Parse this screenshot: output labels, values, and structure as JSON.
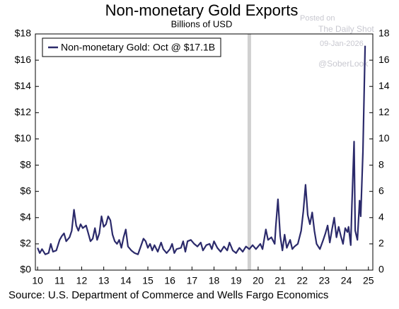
{
  "chart_data": {
    "type": "line",
    "title": "Non-monetary Gold Exports",
    "subtitle": "Billions of USD",
    "source": "Source: U.S. Department of Commerce and Wells Fargo Economics",
    "watermark": [
      "Posted on",
      "The Daily Shot",
      "09-Jan-2026",
      "@SoberLook"
    ],
    "legend_position": "upper left",
    "shaded_x": [
      19.52,
      19.68
    ],
    "shade_color": "#d0d0d0",
    "x": [
      10.0,
      10.1,
      10.2,
      10.35,
      10.5,
      10.6,
      10.7,
      10.85,
      11.0,
      11.1,
      11.2,
      11.3,
      11.45,
      11.55,
      11.65,
      11.75,
      11.85,
      11.95,
      12.05,
      12.2,
      12.3,
      12.4,
      12.5,
      12.6,
      12.7,
      12.8,
      12.9,
      13.0,
      13.1,
      13.2,
      13.3,
      13.4,
      13.5,
      13.6,
      13.7,
      13.8,
      13.9,
      14.0,
      14.1,
      14.25,
      14.4,
      14.55,
      14.7,
      14.8,
      14.9,
      15.0,
      15.1,
      15.2,
      15.3,
      15.45,
      15.6,
      15.7,
      15.85,
      16.0,
      16.1,
      16.2,
      16.3,
      16.5,
      16.6,
      16.7,
      16.8,
      16.95,
      17.1,
      17.25,
      17.4,
      17.5,
      17.65,
      17.8,
      17.9,
      18.0,
      18.15,
      18.3,
      18.45,
      18.6,
      18.7,
      18.85,
      19.0,
      19.15,
      19.3,
      19.45,
      19.6,
      19.75,
      19.9,
      20.0,
      20.1,
      20.2,
      20.35,
      20.45,
      20.6,
      20.75,
      20.8,
      20.9,
      21.0,
      21.1,
      21.2,
      21.3,
      21.45,
      21.55,
      21.65,
      21.8,
      21.95,
      22.05,
      22.15,
      22.25,
      22.35,
      22.45,
      22.55,
      22.65,
      22.8,
      22.95,
      23.05,
      23.15,
      23.25,
      23.35,
      23.45,
      23.55,
      23.65,
      23.75,
      23.85,
      23.95,
      24.05,
      24.1,
      24.2,
      24.25,
      24.35,
      24.4,
      24.5,
      24.6,
      24.65,
      24.75,
      24.85
    ],
    "series": [
      {
        "name": "Non-monetary Gold: Oct @ $17.1B",
        "color": "#2b2a6b",
        "values": [
          1.7,
          1.3,
          1.6,
          1.2,
          1.3,
          2.0,
          1.4,
          1.5,
          2.3,
          2.6,
          2.8,
          2.2,
          2.5,
          3.0,
          4.6,
          3.4,
          3.0,
          3.5,
          3.2,
          3.4,
          2.8,
          2.2,
          2.4,
          3.2,
          2.3,
          2.8,
          4.1,
          3.3,
          3.5,
          4.1,
          3.8,
          2.7,
          2.2,
          2.0,
          2.3,
          1.7,
          2.5,
          3.1,
          1.8,
          1.5,
          1.3,
          1.2,
          1.9,
          2.4,
          2.2,
          1.7,
          2.0,
          1.5,
          1.9,
          1.4,
          2.1,
          1.6,
          1.3,
          1.6,
          2.0,
          1.3,
          1.6,
          1.7,
          2.2,
          1.4,
          2.2,
          2.3,
          2.0,
          1.8,
          2.1,
          1.5,
          1.9,
          2.0,
          1.6,
          2.2,
          1.7,
          1.4,
          1.8,
          1.5,
          2.1,
          1.5,
          1.3,
          1.7,
          1.4,
          1.8,
          1.6,
          1.9,
          1.6,
          1.8,
          2.0,
          1.6,
          3.1,
          2.3,
          2.5,
          2.0,
          3.3,
          5.4,
          2.6,
          1.5,
          2.7,
          1.7,
          2.3,
          1.6,
          1.8,
          2.0,
          3.0,
          4.5,
          6.5,
          4.2,
          3.5,
          4.4,
          3.0,
          2.0,
          1.6,
          2.3,
          2.8,
          3.4,
          2.1,
          3.1,
          4.0,
          2.5,
          3.3,
          2.6,
          2.0,
          3.2,
          2.9,
          3.3,
          1.9,
          4.9,
          9.8,
          3.0,
          2.3,
          5.3,
          4.1,
          9.0,
          17.1
        ]
      }
    ],
    "xlim": [
      9.9,
      25.2
    ],
    "xticks": [
      10,
      11,
      12,
      13,
      14,
      15,
      16,
      17,
      18,
      19,
      20,
      21,
      22,
      23,
      24,
      25
    ],
    "ylim": [
      0,
      18
    ],
    "yticks": [
      {
        "value": 0,
        "label": "$0"
      },
      {
        "value": 2,
        "label": "$2"
      },
      {
        "value": 4,
        "label": "$4"
      },
      {
        "value": 6,
        "label": "$6"
      },
      {
        "value": 8,
        "label": "$8"
      },
      {
        "value": 10,
        "label": "$10"
      },
      {
        "value": 12,
        "label": "$12"
      },
      {
        "value": 14,
        "label": "$14"
      },
      {
        "value": 16,
        "label": "$16"
      },
      {
        "value": 18,
        "label": "$18"
      }
    ],
    "y2lim": [
      0,
      18
    ],
    "y2ticks": [
      0,
      2,
      4,
      6,
      8,
      10,
      12,
      14,
      16,
      18
    ]
  }
}
